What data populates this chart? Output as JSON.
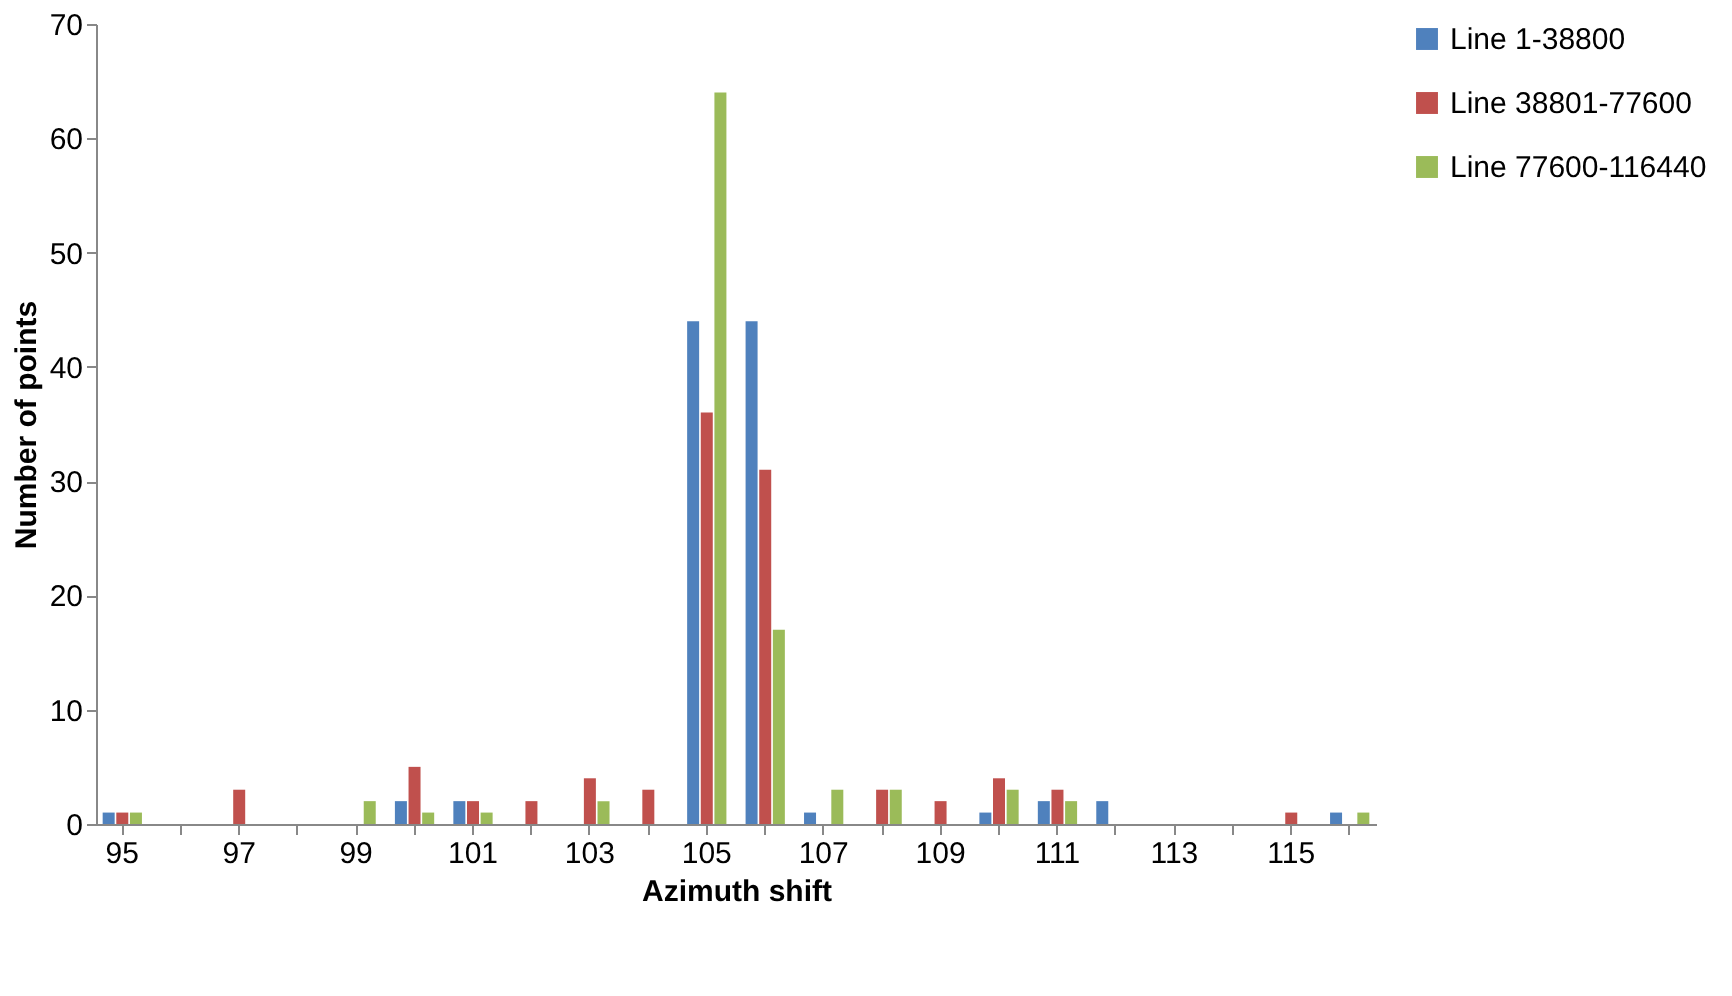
{
  "chart_data": {
    "type": "bar",
    "xlabel": "Azimuth shift",
    "ylabel": "Number of points",
    "categories": [
      "95",
      null,
      "97",
      null,
      "99",
      null,
      "101",
      null,
      "103",
      null,
      "105",
      null,
      "107",
      null,
      "109",
      null,
      "111",
      null,
      "113",
      null,
      "115",
      null
    ],
    "series": [
      {
        "name": "Line 1-38800",
        "color": "#4f81bd",
        "values": [
          1,
          0,
          0,
          0,
          0,
          2,
          2,
          0,
          0,
          0,
          44,
          44,
          1,
          0,
          0,
          1,
          2,
          2,
          0,
          0,
          0,
          1
        ]
      },
      {
        "name": "Line 38801-77600",
        "color": "#c0504d",
        "values": [
          1,
          0,
          3,
          0,
          0,
          5,
          2,
          2,
          4,
          3,
          36,
          31,
          0,
          3,
          2,
          4,
          3,
          0,
          0,
          0,
          1,
          0
        ]
      },
      {
        "name": "Line 77600-116440",
        "color": "#9bbb59",
        "values": [
          1,
          0,
          0,
          0,
          2,
          1,
          1,
          0,
          2,
          0,
          64,
          17,
          3,
          3,
          0,
          3,
          2,
          0,
          0,
          0,
          0,
          1
        ]
      }
    ],
    "ylim": [
      0,
      70
    ],
    "yticks": [
      0,
      10,
      20,
      30,
      40,
      50,
      60,
      70
    ],
    "grid": false,
    "legend": "right"
  }
}
